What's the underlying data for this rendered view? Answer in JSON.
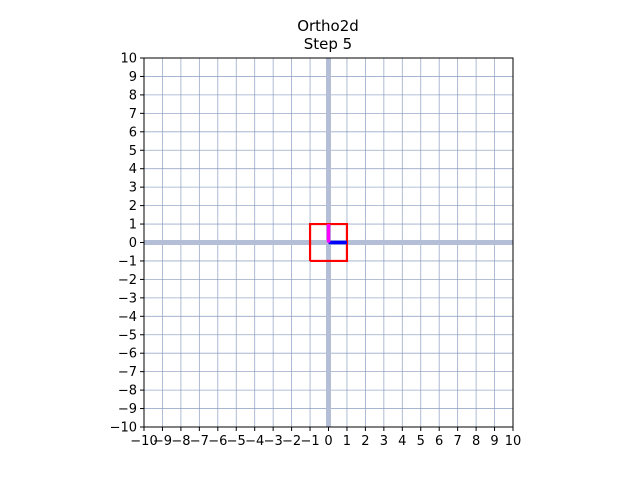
{
  "chart_data": {
    "type": "line",
    "title": "Ortho2d",
    "subtitle": "Step 5",
    "xlabel": "",
    "ylabel": "",
    "xlim": [
      -10,
      10
    ],
    "ylim": [
      -10,
      10
    ],
    "grid": true,
    "x_ticks": [
      -10,
      -9,
      -8,
      -7,
      -6,
      -5,
      -4,
      -3,
      -2,
      -1,
      0,
      1,
      2,
      3,
      4,
      5,
      6,
      7,
      8,
      9,
      10
    ],
    "y_ticks": [
      -10,
      -9,
      -8,
      -7,
      -6,
      -5,
      -4,
      -3,
      -2,
      -1,
      0,
      1,
      2,
      3,
      4,
      5,
      6,
      7,
      8,
      9,
      10
    ],
    "x_tick_labels": [
      "−10",
      "−9",
      "−8",
      "−7",
      "−6",
      "−5",
      "−4",
      "−3",
      "−2",
      "−1",
      "0",
      "1",
      "2",
      "3",
      "4",
      "5",
      "6",
      "7",
      "8",
      "9",
      "10"
    ],
    "y_tick_labels": [
      "−10",
      "−9",
      "−8",
      "−7",
      "−6",
      "−5",
      "−4",
      "−3",
      "−2",
      "−1",
      "0",
      "1",
      "2",
      "3",
      "4",
      "5",
      "6",
      "7",
      "8",
      "9",
      "10"
    ],
    "series": [
      {
        "values_x": [
          -1,
          1,
          1,
          -1,
          -1
        ],
        "values_y": [
          -1,
          -1,
          1,
          1,
          -1
        ],
        "color": "#ff0000"
      },
      {
        "values_x": [
          0,
          1
        ],
        "values_y": [
          0,
          0
        ],
        "color": "#0000ff"
      },
      {
        "values_x": [
          0,
          0
        ],
        "values_y": [
          0,
          1
        ],
        "color": "#ff00ff"
      }
    ],
    "colors": {
      "grid": "#8a9bc0",
      "axis_lines": "#b4bed6",
      "frame": "#000000"
    }
  }
}
